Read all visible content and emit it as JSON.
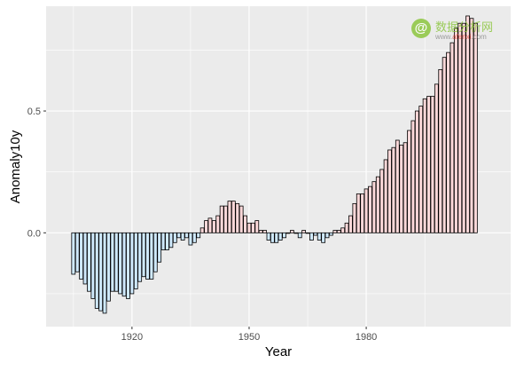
{
  "chart_data": {
    "type": "bar",
    "xlabel": "Year",
    "ylabel": "Anomaly10y",
    "xlim": [
      1898,
      2017
    ],
    "ylim": [
      -0.385,
      0.93
    ],
    "x_ticks": [
      1920,
      1950,
      1980
    ],
    "x_tick_labels": [
      "1920",
      "1950",
      "1980"
    ],
    "y_ticks": [
      0.0,
      0.5
    ],
    "y_tick_labels": [
      "0.0",
      "0.5"
    ],
    "grid": true,
    "legend": "none",
    "x": [
      1905,
      1906,
      1907,
      1908,
      1909,
      1910,
      1911,
      1912,
      1913,
      1914,
      1915,
      1916,
      1917,
      1918,
      1919,
      1920,
      1921,
      1922,
      1923,
      1924,
      1925,
      1926,
      1927,
      1928,
      1929,
      1930,
      1931,
      1932,
      1933,
      1934,
      1935,
      1936,
      1937,
      1938,
      1939,
      1940,
      1941,
      1942,
      1943,
      1944,
      1945,
      1946,
      1947,
      1948,
      1949,
      1950,
      1951,
      1952,
      1953,
      1954,
      1955,
      1956,
      1957,
      1958,
      1959,
      1960,
      1961,
      1962,
      1963,
      1964,
      1965,
      1966,
      1967,
      1968,
      1969,
      1970,
      1971,
      1972,
      1973,
      1974,
      1975,
      1976,
      1977,
      1978,
      1979,
      1980,
      1981,
      1982,
      1983,
      1984,
      1985,
      1986,
      1987,
      1988,
      1989,
      1990,
      1991,
      1992,
      1993,
      1994,
      1995,
      1996,
      1997,
      1998,
      1999,
      2000,
      2001,
      2002,
      2003,
      2004,
      2005,
      2006,
      2007,
      2008
    ],
    "values": [
      -0.17,
      -0.16,
      -0.19,
      -0.21,
      -0.24,
      -0.27,
      -0.31,
      -0.32,
      -0.33,
      -0.28,
      -0.24,
      -0.24,
      -0.25,
      -0.26,
      -0.27,
      -0.25,
      -0.23,
      -0.2,
      -0.18,
      -0.19,
      -0.19,
      -0.16,
      -0.12,
      -0.07,
      -0.07,
      -0.06,
      -0.04,
      -0.02,
      -0.03,
      -0.02,
      -0.05,
      -0.04,
      -0.02,
      0.02,
      0.05,
      0.06,
      0.05,
      0.07,
      0.11,
      0.11,
      0.13,
      0.13,
      0.12,
      0.11,
      0.07,
      0.04,
      0.04,
      0.05,
      0.01,
      0.01,
      -0.03,
      -0.04,
      -0.04,
      -0.03,
      -0.02,
      0.0,
      0.01,
      0.0,
      -0.02,
      0.01,
      0.0,
      -0.03,
      -0.01,
      -0.03,
      -0.04,
      -0.02,
      -0.01,
      0.01,
      0.01,
      0.02,
      0.04,
      0.07,
      0.12,
      0.16,
      0.16,
      0.18,
      0.19,
      0.21,
      0.23,
      0.26,
      0.3,
      0.34,
      0.35,
      0.38,
      0.36,
      0.37,
      0.42,
      0.46,
      0.5,
      0.52,
      0.55,
      0.56,
      0.56,
      0.61,
      0.67,
      0.72,
      0.74,
      0.78,
      0.84,
      0.86,
      0.86,
      0.89,
      0.88,
      0.86
    ],
    "colors": {
      "positive_fill": "#fbd8d9",
      "negative_fill": "#cfe9fc",
      "bar_outline": "#000000",
      "panel_bg": "#ebebeb",
      "grid_major": "#ffffff",
      "axis_text": "#4d4d4d",
      "title_text": "#000000"
    }
  },
  "watermark": {
    "icon_glyph": "@",
    "title": "数据分析网",
    "url_prefix": "www.",
    "url_brand": "afenxi",
    "url_suffix": ".com"
  }
}
